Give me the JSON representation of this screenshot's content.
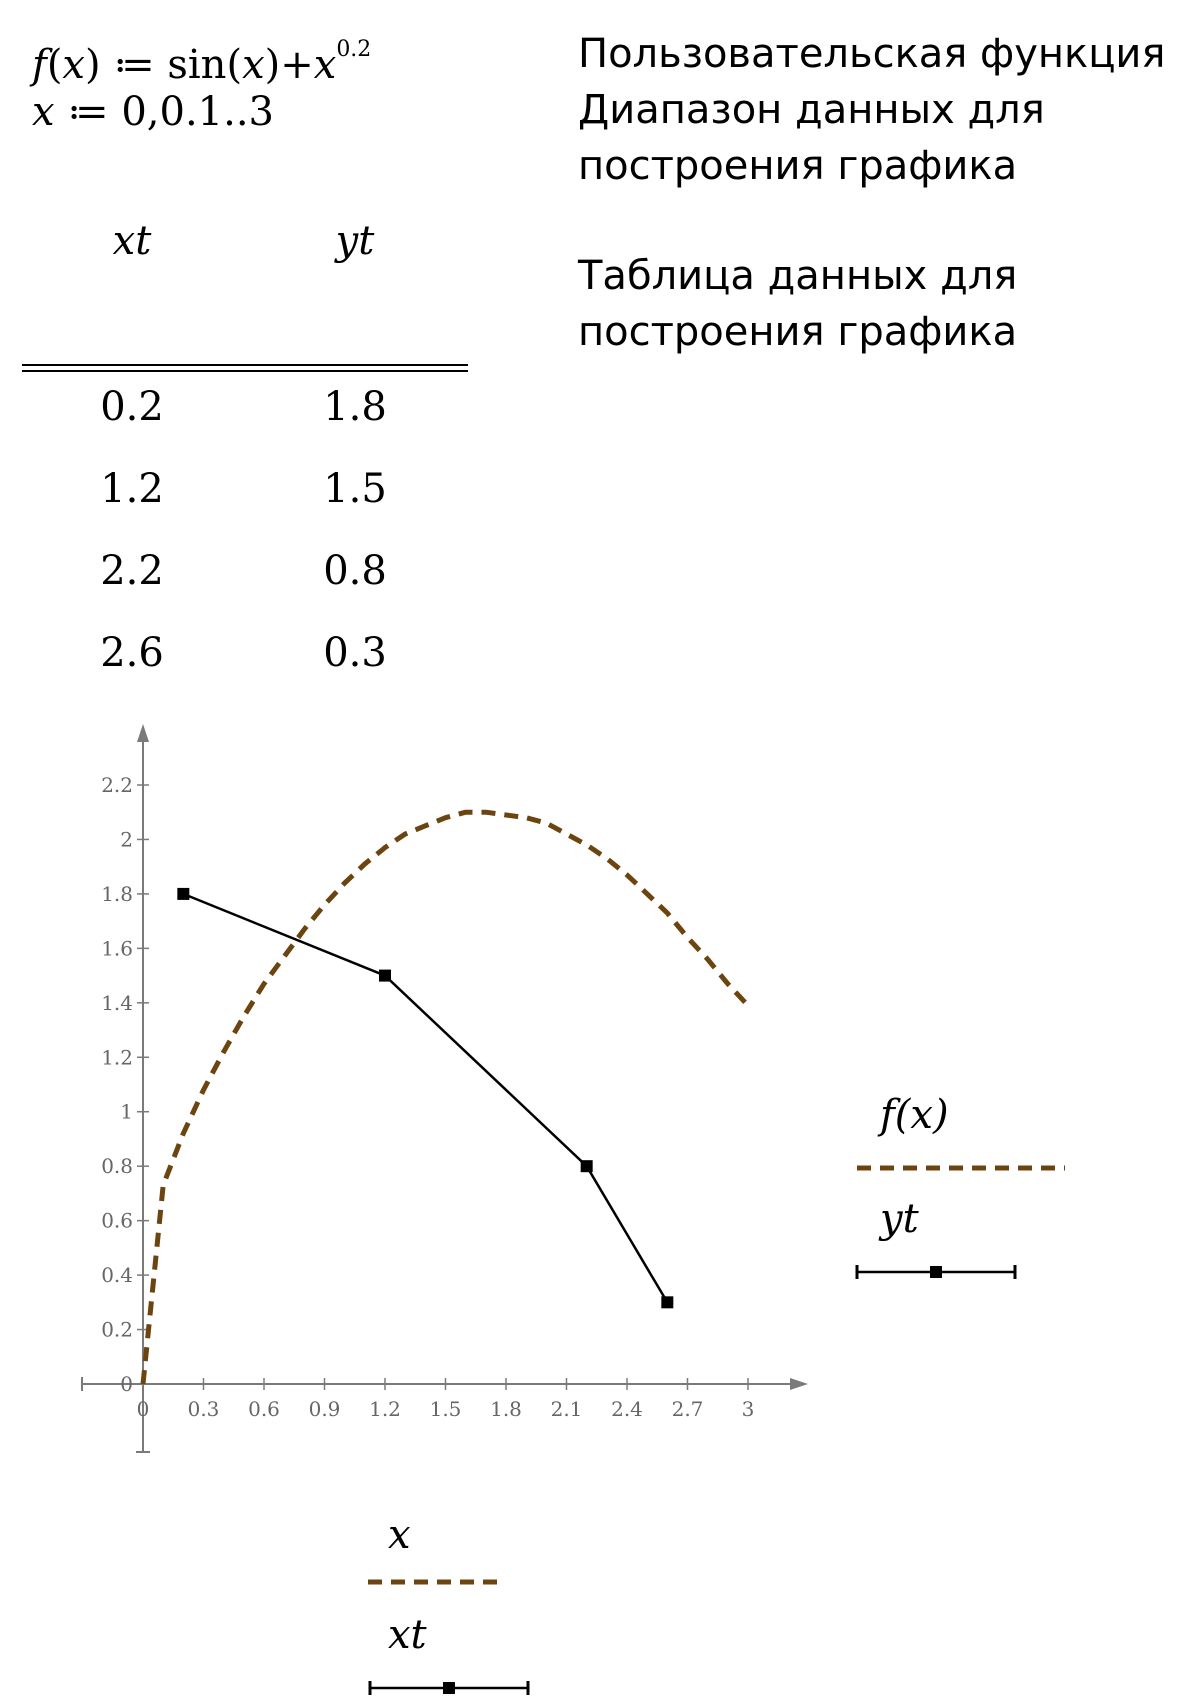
{
  "formulas": {
    "f_name": "f",
    "f_arg": "x",
    "assign": "≔",
    "sin": "sin",
    "sin_arg": "x",
    "plus": "+",
    "power_base": "x",
    "exponent": "0.2",
    "range_var": "x",
    "range_expr": "0,0.1..3"
  },
  "descriptions": {
    "function_desc": "Пользовательская функция",
    "range_desc": "Диапазон данных для\nпостроения графика",
    "table_desc": "Таблица данных для\nпостроения графика"
  },
  "table": {
    "headers": [
      "xt",
      "yt"
    ],
    "rows": [
      [
        "0.2",
        "1.8"
      ],
      [
        "1.2",
        "1.5"
      ],
      [
        "2.2",
        "0.8"
      ],
      [
        "2.6",
        "0.3"
      ]
    ]
  },
  "chart_data": {
    "type": "line",
    "series": [
      {
        "name": "f(x)",
        "style": "dashed",
        "color": "#6b4410",
        "x": [
          0,
          0.1,
          0.2,
          0.3,
          0.4,
          0.5,
          0.6,
          0.7,
          0.8,
          0.9,
          1.0,
          1.1,
          1.2,
          1.3,
          1.4,
          1.5,
          1.6,
          1.7,
          1.8,
          1.9,
          2.0,
          2.1,
          2.2,
          2.3,
          2.4,
          2.5,
          2.6,
          2.7,
          2.8,
          2.9,
          3.0
        ],
        "y": [
          0,
          0.73,
          0.92,
          1.08,
          1.22,
          1.35,
          1.47,
          1.57,
          1.67,
          1.76,
          1.84,
          1.91,
          1.97,
          2.02,
          2.05,
          2.08,
          2.1,
          2.1,
          2.09,
          2.08,
          2.06,
          2.02,
          1.98,
          1.93,
          1.87,
          1.8,
          1.73,
          1.64,
          1.56,
          1.47,
          1.39
        ]
      },
      {
        "name": "yt",
        "style": "solid-markers",
        "color": "#000000",
        "x": [
          0.2,
          1.2,
          2.2,
          2.6
        ],
        "y": [
          1.8,
          1.5,
          0.8,
          0.3
        ]
      }
    ],
    "xlim": [
      0,
      3
    ],
    "ylim": [
      0,
      2.2
    ],
    "xticks": [
      "0",
      "0.3",
      "0.6",
      "0.9",
      "1.2",
      "1.5",
      "1.8",
      "2.1",
      "2.4",
      "2.7",
      "3"
    ],
    "yticks": [
      "0",
      "0.2",
      "0.4",
      "0.6",
      "0.8",
      "1",
      "1.2",
      "1.4",
      "1.6",
      "1.8",
      "2",
      "2.2"
    ],
    "legend_y": [
      "f(x)",
      "yt"
    ],
    "legend_x": [
      "x",
      "xt"
    ],
    "grid": false
  }
}
